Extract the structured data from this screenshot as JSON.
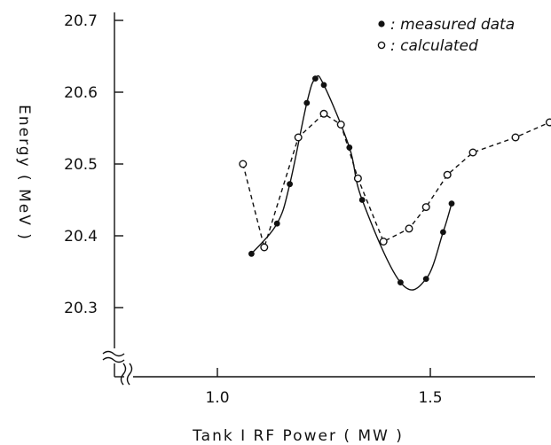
{
  "chart_data": {
    "type": "scatter",
    "xlabel": "Tank I RF Power ( MW )",
    "ylabel": "Energy ( MeV )",
    "x_ticks": [
      "1.0",
      "1.5"
    ],
    "y_ticks": [
      "20.3",
      "20.4",
      "20.5",
      "20.6",
      "20.7"
    ],
    "xlim": [
      0.75,
      1.85
    ],
    "ylim": [
      20.3,
      20.7
    ],
    "axis_break": true,
    "grid": false,
    "legend_position": "top-right",
    "series": [
      {
        "name": ": measured data",
        "marker": "filled-circle",
        "line": "solid",
        "points": [
          {
            "x": 1.08,
            "y": 20.375
          },
          {
            "x": 1.14,
            "y": 20.417
          },
          {
            "x": 1.17,
            "y": 20.472
          },
          {
            "x": 1.21,
            "y": 20.585
          },
          {
            "x": 1.23,
            "y": 20.619
          },
          {
            "x": 1.25,
            "y": 20.61
          },
          {
            "x": 1.31,
            "y": 20.523
          },
          {
            "x": 1.34,
            "y": 20.45
          },
          {
            "x": 1.43,
            "y": 20.335
          },
          {
            "x": 1.49,
            "y": 20.34
          },
          {
            "x": 1.53,
            "y": 20.405
          },
          {
            "x": 1.55,
            "y": 20.445
          }
        ]
      },
      {
        "name": ": calculated",
        "marker": "open-circle",
        "line": "dashed",
        "points": [
          {
            "x": 1.06,
            "y": 20.5
          },
          {
            "x": 1.11,
            "y": 20.384
          },
          {
            "x": 1.19,
            "y": 20.537
          },
          {
            "x": 1.25,
            "y": 20.57
          },
          {
            "x": 1.29,
            "y": 20.555
          },
          {
            "x": 1.33,
            "y": 20.48
          },
          {
            "x": 1.39,
            "y": 20.392
          },
          {
            "x": 1.45,
            "y": 20.41
          },
          {
            "x": 1.49,
            "y": 20.44
          },
          {
            "x": 1.54,
            "y": 20.485
          },
          {
            "x": 1.6,
            "y": 20.516
          },
          {
            "x": 1.7,
            "y": 20.537
          },
          {
            "x": 1.78,
            "y": 20.558
          }
        ]
      }
    ]
  }
}
